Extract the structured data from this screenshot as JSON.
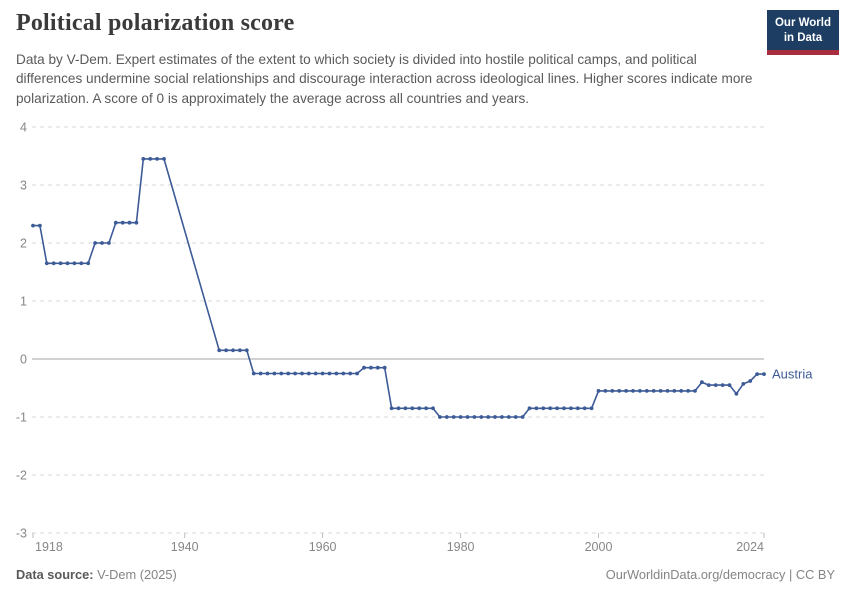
{
  "header": {
    "title": "Political polarization score",
    "subtitle": "Data by V-Dem. Expert estimates of the extent to which society is divided into hostile political camps, and political differences undermine social relationships and discourage interaction across ideological lines. Higher scores indicate more polarization. A score of 0 is approximately the average across all countries and years.",
    "logo": {
      "line1": "Our World",
      "line2": "in Data",
      "bg": "#1d3d63",
      "accent": "#a82d3f"
    }
  },
  "theme": {
    "grid_color": "#d8d8d8",
    "zero_line_color": "#a6a6a6",
    "tick_color": "#bdbdbd",
    "axis_label_color": "#878787",
    "line_color": "#3d5b96"
  },
  "chart_data": {
    "type": "line",
    "title": "Political polarization score",
    "xlabel": "",
    "ylabel": "",
    "xlim": [
      1918,
      2024
    ],
    "ylim": [
      -3,
      4
    ],
    "x_ticks": [
      1918,
      1940,
      1960,
      1980,
      2000,
      2024
    ],
    "y_ticks": [
      4,
      3,
      2,
      1,
      0,
      -1,
      -2,
      -3
    ],
    "grid": "dashed horizontal, solid zero line",
    "legend_position": "end-of-line label",
    "data_gap_note": "no data 1938-1944; line connects 1937 directly to 1945",
    "series": [
      {
        "name": "Austria",
        "color": "#3d5b96",
        "points": [
          [
            1918,
            2.3
          ],
          [
            1919,
            2.3
          ],
          [
            1920,
            1.65
          ],
          [
            1921,
            1.65
          ],
          [
            1922,
            1.65
          ],
          [
            1923,
            1.65
          ],
          [
            1924,
            1.65
          ],
          [
            1925,
            1.65
          ],
          [
            1926,
            1.65
          ],
          [
            1927,
            2.0
          ],
          [
            1928,
            2.0
          ],
          [
            1929,
            2.0
          ],
          [
            1930,
            2.35
          ],
          [
            1931,
            2.35
          ],
          [
            1932,
            2.35
          ],
          [
            1933,
            2.35
          ],
          [
            1934,
            3.45
          ],
          [
            1935,
            3.45
          ],
          [
            1936,
            3.45
          ],
          [
            1937,
            3.45
          ],
          [
            1945,
            0.15
          ],
          [
            1946,
            0.15
          ],
          [
            1947,
            0.15
          ],
          [
            1948,
            0.15
          ],
          [
            1949,
            0.15
          ],
          [
            1950,
            -0.25
          ],
          [
            1951,
            -0.25
          ],
          [
            1952,
            -0.25
          ],
          [
            1953,
            -0.25
          ],
          [
            1954,
            -0.25
          ],
          [
            1955,
            -0.25
          ],
          [
            1956,
            -0.25
          ],
          [
            1957,
            -0.25
          ],
          [
            1958,
            -0.25
          ],
          [
            1959,
            -0.25
          ],
          [
            1960,
            -0.25
          ],
          [
            1961,
            -0.25
          ],
          [
            1962,
            -0.25
          ],
          [
            1963,
            -0.25
          ],
          [
            1964,
            -0.25
          ],
          [
            1965,
            -0.25
          ],
          [
            1966,
            -0.15
          ],
          [
            1967,
            -0.15
          ],
          [
            1968,
            -0.15
          ],
          [
            1969,
            -0.15
          ],
          [
            1970,
            -0.85
          ],
          [
            1971,
            -0.85
          ],
          [
            1972,
            -0.85
          ],
          [
            1973,
            -0.85
          ],
          [
            1974,
            -0.85
          ],
          [
            1975,
            -0.85
          ],
          [
            1976,
            -0.85
          ],
          [
            1977,
            -1.0
          ],
          [
            1978,
            -1.0
          ],
          [
            1979,
            -1.0
          ],
          [
            1980,
            -1.0
          ],
          [
            1981,
            -1.0
          ],
          [
            1982,
            -1.0
          ],
          [
            1983,
            -1.0
          ],
          [
            1984,
            -1.0
          ],
          [
            1985,
            -1.0
          ],
          [
            1986,
            -1.0
          ],
          [
            1987,
            -1.0
          ],
          [
            1988,
            -1.0
          ],
          [
            1989,
            -1.0
          ],
          [
            1990,
            -0.85
          ],
          [
            1991,
            -0.85
          ],
          [
            1992,
            -0.85
          ],
          [
            1993,
            -0.85
          ],
          [
            1994,
            -0.85
          ],
          [
            1995,
            -0.85
          ],
          [
            1996,
            -0.85
          ],
          [
            1997,
            -0.85
          ],
          [
            1998,
            -0.85
          ],
          [
            1999,
            -0.85
          ],
          [
            2000,
            -0.55
          ],
          [
            2001,
            -0.55
          ],
          [
            2002,
            -0.55
          ],
          [
            2003,
            -0.55
          ],
          [
            2004,
            -0.55
          ],
          [
            2005,
            -0.55
          ],
          [
            2006,
            -0.55
          ],
          [
            2007,
            -0.55
          ],
          [
            2008,
            -0.55
          ],
          [
            2009,
            -0.55
          ],
          [
            2010,
            -0.55
          ],
          [
            2011,
            -0.55
          ],
          [
            2012,
            -0.55
          ],
          [
            2013,
            -0.55
          ],
          [
            2014,
            -0.55
          ],
          [
            2015,
            -0.4
          ],
          [
            2016,
            -0.45
          ],
          [
            2017,
            -0.45
          ],
          [
            2018,
            -0.45
          ],
          [
            2019,
            -0.45
          ],
          [
            2020,
            -0.6
          ],
          [
            2021,
            -0.43
          ],
          [
            2022,
            -0.38
          ],
          [
            2023,
            -0.26
          ],
          [
            2024,
            -0.26
          ]
        ]
      }
    ]
  },
  "footer": {
    "source_label": "Data source:",
    "source_value": " V-Dem (2025)",
    "credit": "OurWorldinData.org/democracy | CC BY"
  }
}
